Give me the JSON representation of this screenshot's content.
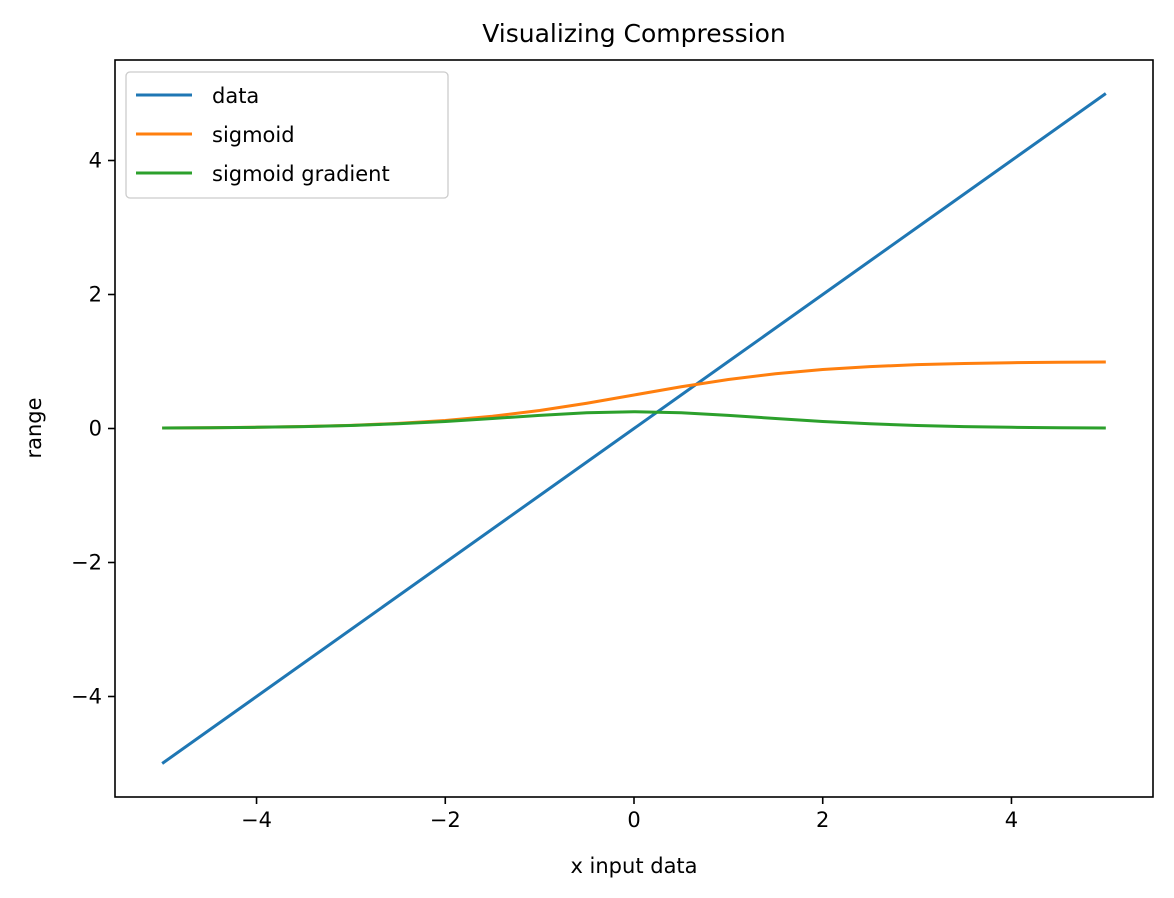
{
  "chart_data": {
    "type": "line",
    "title": "Visualizing Compression",
    "xlabel": "x input data",
    "ylabel": "range",
    "xlim": [
      -5.5,
      5.5
    ],
    "ylim": [
      -5.5,
      5.5
    ],
    "xticks": [
      -4,
      -2,
      0,
      2,
      4
    ],
    "yticks": [
      -4,
      -2,
      0,
      2,
      4
    ],
    "xtick_labels": [
      "−4",
      "−2",
      "0",
      "2",
      "4"
    ],
    "ytick_labels": [
      "−4",
      "−2",
      "0",
      "2",
      "4"
    ],
    "grid": false,
    "legend": {
      "position": "upper-left"
    },
    "x": [
      -5,
      -4.5,
      -4,
      -3.5,
      -3,
      -2.5,
      -2,
      -1.5,
      -1,
      -0.5,
      0,
      0.5,
      1,
      1.5,
      2,
      2.5,
      3,
      3.5,
      4,
      4.5,
      5
    ],
    "series": [
      {
        "name": "data",
        "color": "#1f77b4",
        "values": [
          -5,
          -4.5,
          -4,
          -3.5,
          -3,
          -2.5,
          -2,
          -1.5,
          -1,
          -0.5,
          0,
          0.5,
          1,
          1.5,
          2,
          2.5,
          3,
          3.5,
          4,
          4.5,
          5
        ]
      },
      {
        "name": "sigmoid",
        "color": "#ff7f0e",
        "values": [
          0.0067,
          0.011,
          0.018,
          0.0293,
          0.0474,
          0.0759,
          0.1192,
          0.1824,
          0.2689,
          0.3775,
          0.5,
          0.6225,
          0.7311,
          0.8176,
          0.8808,
          0.9241,
          0.9526,
          0.9707,
          0.982,
          0.989,
          0.9933
        ]
      },
      {
        "name": "sigmoid gradient",
        "color": "#2ca02c",
        "values": [
          0.0066,
          0.0109,
          0.0177,
          0.0285,
          0.0452,
          0.0701,
          0.105,
          0.1491,
          0.1966,
          0.235,
          0.25,
          0.235,
          0.1966,
          0.1491,
          0.105,
          0.0701,
          0.0452,
          0.0285,
          0.0177,
          0.0109,
          0.0066
        ]
      }
    ]
  }
}
